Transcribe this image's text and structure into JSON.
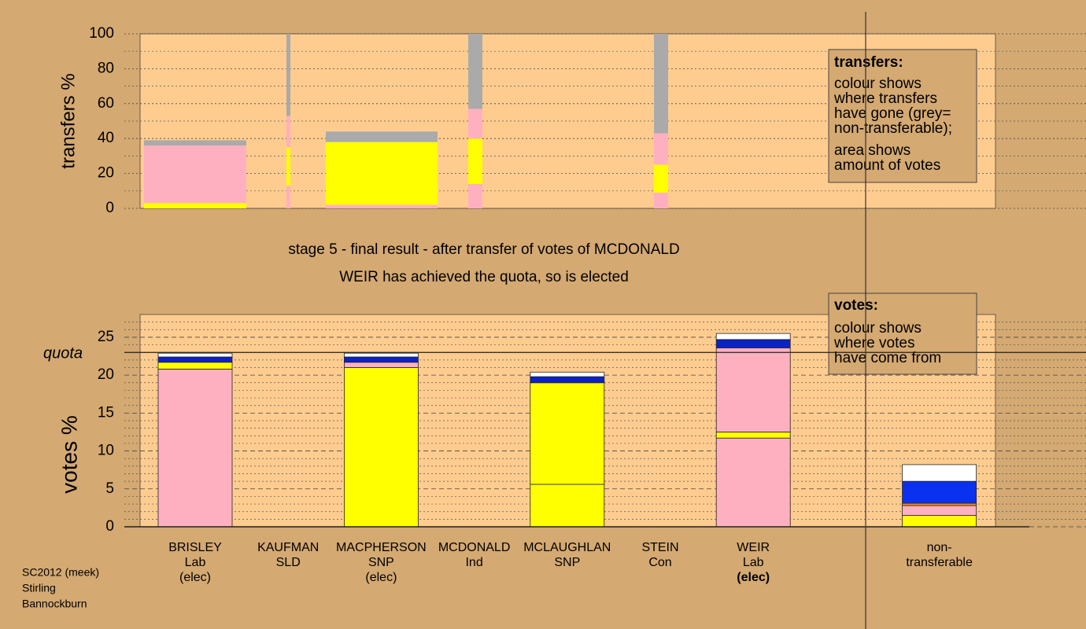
{
  "chart_data": [
    {
      "type": "bar",
      "y_label": "transfers %",
      "ylim": [
        0,
        100
      ],
      "yticks": [
        0,
        20,
        40,
        60,
        80,
        100
      ],
      "minor_yticks": [
        10,
        30,
        50,
        70,
        90
      ],
      "columns": [
        [
          {
            "color": "#ffff00",
            "value": 3
          },
          {
            "color": "#ffb0c0",
            "value": 33
          },
          {
            "color": "#aaaaaa",
            "value": 3
          }
        ],
        [
          {
            "color": "#ffb0c0",
            "value": 13
          },
          {
            "color": "#ffff00",
            "value": 22
          },
          {
            "color": "#ffb0c0",
            "value": 18
          },
          {
            "color": "#aaaaaa",
            "value": 47
          }
        ],
        [
          {
            "color": "#ffb0c0",
            "value": 2
          },
          {
            "color": "#ffff00",
            "value": 36
          },
          {
            "color": "#aaaaaa",
            "value": 6
          }
        ],
        [
          {
            "color": "#ffb0c0",
            "value": 14
          },
          {
            "color": "#ffff00",
            "value": 26
          },
          {
            "color": "#ffb0c0",
            "value": 17
          },
          {
            "color": "#aaaaaa",
            "value": 43
          }
        ],
        [
          {
            "color": "#ffb0c0",
            "value": 9
          },
          {
            "color": "#ffff00",
            "value": 16
          },
          {
            "color": "#ffb0c0",
            "value": 18
          },
          {
            "color": "#aaaaaa",
            "value": 57
          }
        ]
      ],
      "legend": {
        "heading": "transfers:",
        "lines": [
          "colour shows",
          "where transfers",
          "have gone (grey=",
          "non-transferable);",
          "area shows",
          "amount of votes"
        ]
      }
    },
    {
      "type": "bar",
      "title": "stage 5 - final result - after transfer of votes of MCDONALD",
      "subtitle": "WEIR has achieved the quota, so is elected",
      "y_label": "votes %",
      "ylim": [
        0,
        28
      ],
      "yticks": [
        0,
        5,
        10,
        15,
        20,
        25
      ],
      "minor_yticks": [
        1,
        2,
        3,
        4,
        6,
        7,
        8,
        9,
        11,
        12,
        13,
        14,
        16,
        17,
        18,
        19,
        21,
        22,
        23,
        24,
        26,
        27
      ],
      "quota": {
        "value": 23,
        "label": "quota"
      },
      "categories": [
        [
          "BRISLEY",
          "Lab",
          "(elec)"
        ],
        [
          "KAUFMAN",
          "SLD"
        ],
        [
          "MACPHERSON",
          "SNP",
          "(elec)"
        ],
        [
          "MCDONALD",
          "Ind"
        ],
        [
          "MCLAUGHLAN",
          "SNP"
        ],
        [
          "STEIN",
          "Con"
        ],
        [
          "WEIR",
          "Lab",
          "(elec)"
        ],
        [
          "non-",
          "transferable"
        ]
      ],
      "stacks": [
        [
          {
            "color": "#ffb0c0",
            "value": 20.8
          },
          {
            "color": "#ffff00",
            "value": 0.9
          },
          {
            "color": "#0a22c8",
            "value": 0.7
          },
          {
            "color": "#ffffff",
            "value": 0.5
          }
        ],
        [],
        [
          {
            "color": "#ffff00",
            "value": 21
          },
          {
            "color": "#ffb0c0",
            "value": 0.7
          },
          {
            "color": "#0a22c8",
            "value": 0.7
          },
          {
            "color": "#ffffff",
            "value": 0.5
          }
        ],
        [],
        [
          {
            "color": "#ffff00",
            "value": 5.6
          },
          {
            "color": "#ffff00",
            "value": 13.4
          },
          {
            "color": "#0a22c8",
            "value": 0.8
          },
          {
            "color": "#ffffff",
            "value": 0.6
          }
        ],
        [],
        [
          {
            "color": "#ffb0c0",
            "value": 11.7
          },
          {
            "color": "#ffff00",
            "value": 0.8
          },
          {
            "color": "#ffb0c0",
            "value": 11.1
          },
          {
            "color": "#0a22c8",
            "value": 1.1
          },
          {
            "color": "#ffffff",
            "value": 0.8
          }
        ],
        [
          {
            "color": "#ffff00",
            "value": 1.5
          },
          {
            "color": "#ffb0c0",
            "value": 1.3
          },
          {
            "color": "#ff8800",
            "value": 0.3
          },
          {
            "color": "#0a30f0",
            "value": 2.9
          },
          {
            "color": "#ffffff",
            "value": 2.2
          }
        ]
      ],
      "legend": {
        "heading": "votes:",
        "lines": [
          "colour shows",
          "where votes",
          "have come from"
        ]
      }
    }
  ],
  "footer": [
    "SC2012 (meek)",
    "Stirling",
    "Bannockburn"
  ]
}
